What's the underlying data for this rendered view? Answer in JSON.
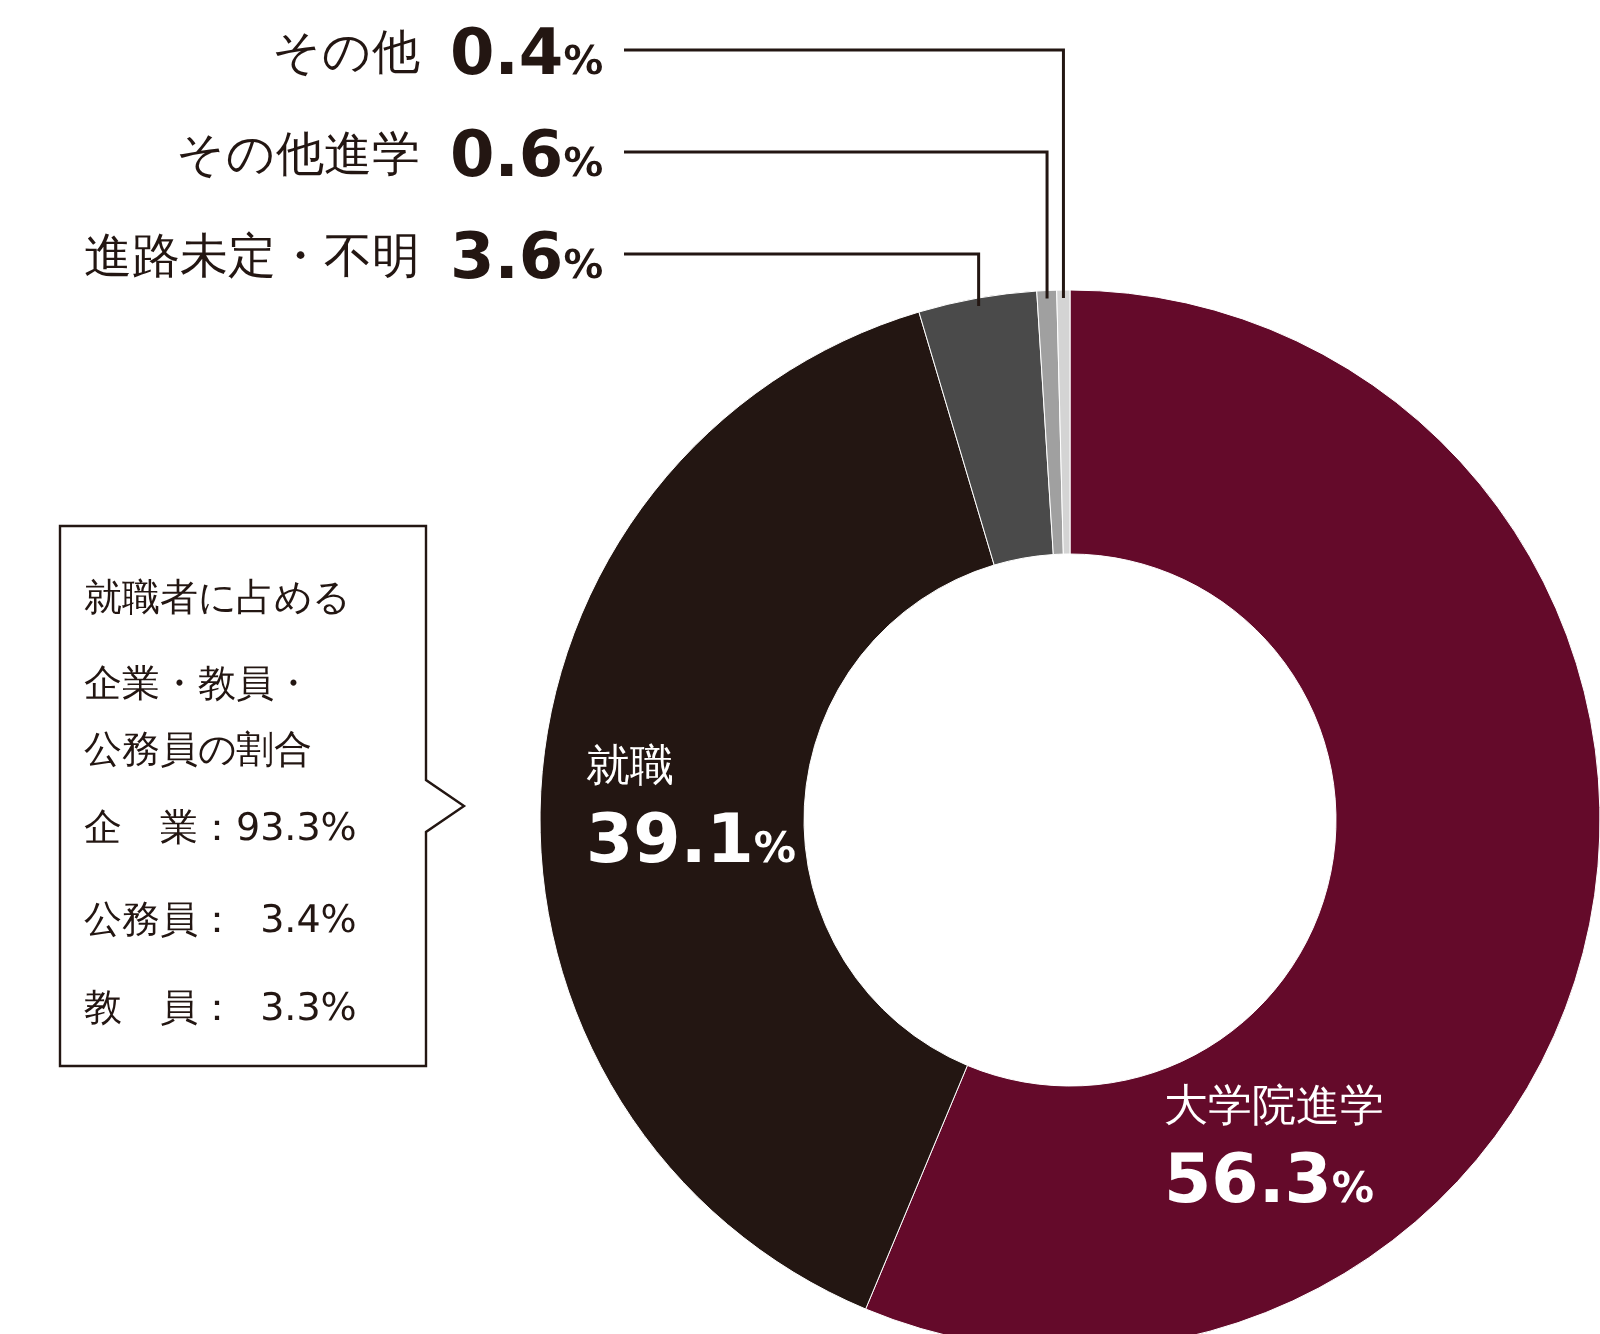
{
  "chart_data": {
    "type": "donut",
    "categories": [
      "大学院進学",
      "就職",
      "進路未定・不明",
      "その他進学",
      "その他"
    ],
    "values": [
      56.3,
      39.1,
      3.6,
      0.6,
      0.4
    ],
    "colors": [
      "#640a2a",
      "#231612",
      "#4a4a4a",
      "#a0a0a0",
      "#d4d4d4"
    ],
    "value_labels": [
      "56.3%",
      "39.1%",
      "3.6%",
      "0.6%",
      "0.4%"
    ],
    "legend": false,
    "annotations": [
      "就職者に占める",
      "企業・教員・",
      "公務員の割合",
      "企　業：93.3%",
      "公務員：  3.4%",
      "教　員：  3.3%"
    ]
  }
}
